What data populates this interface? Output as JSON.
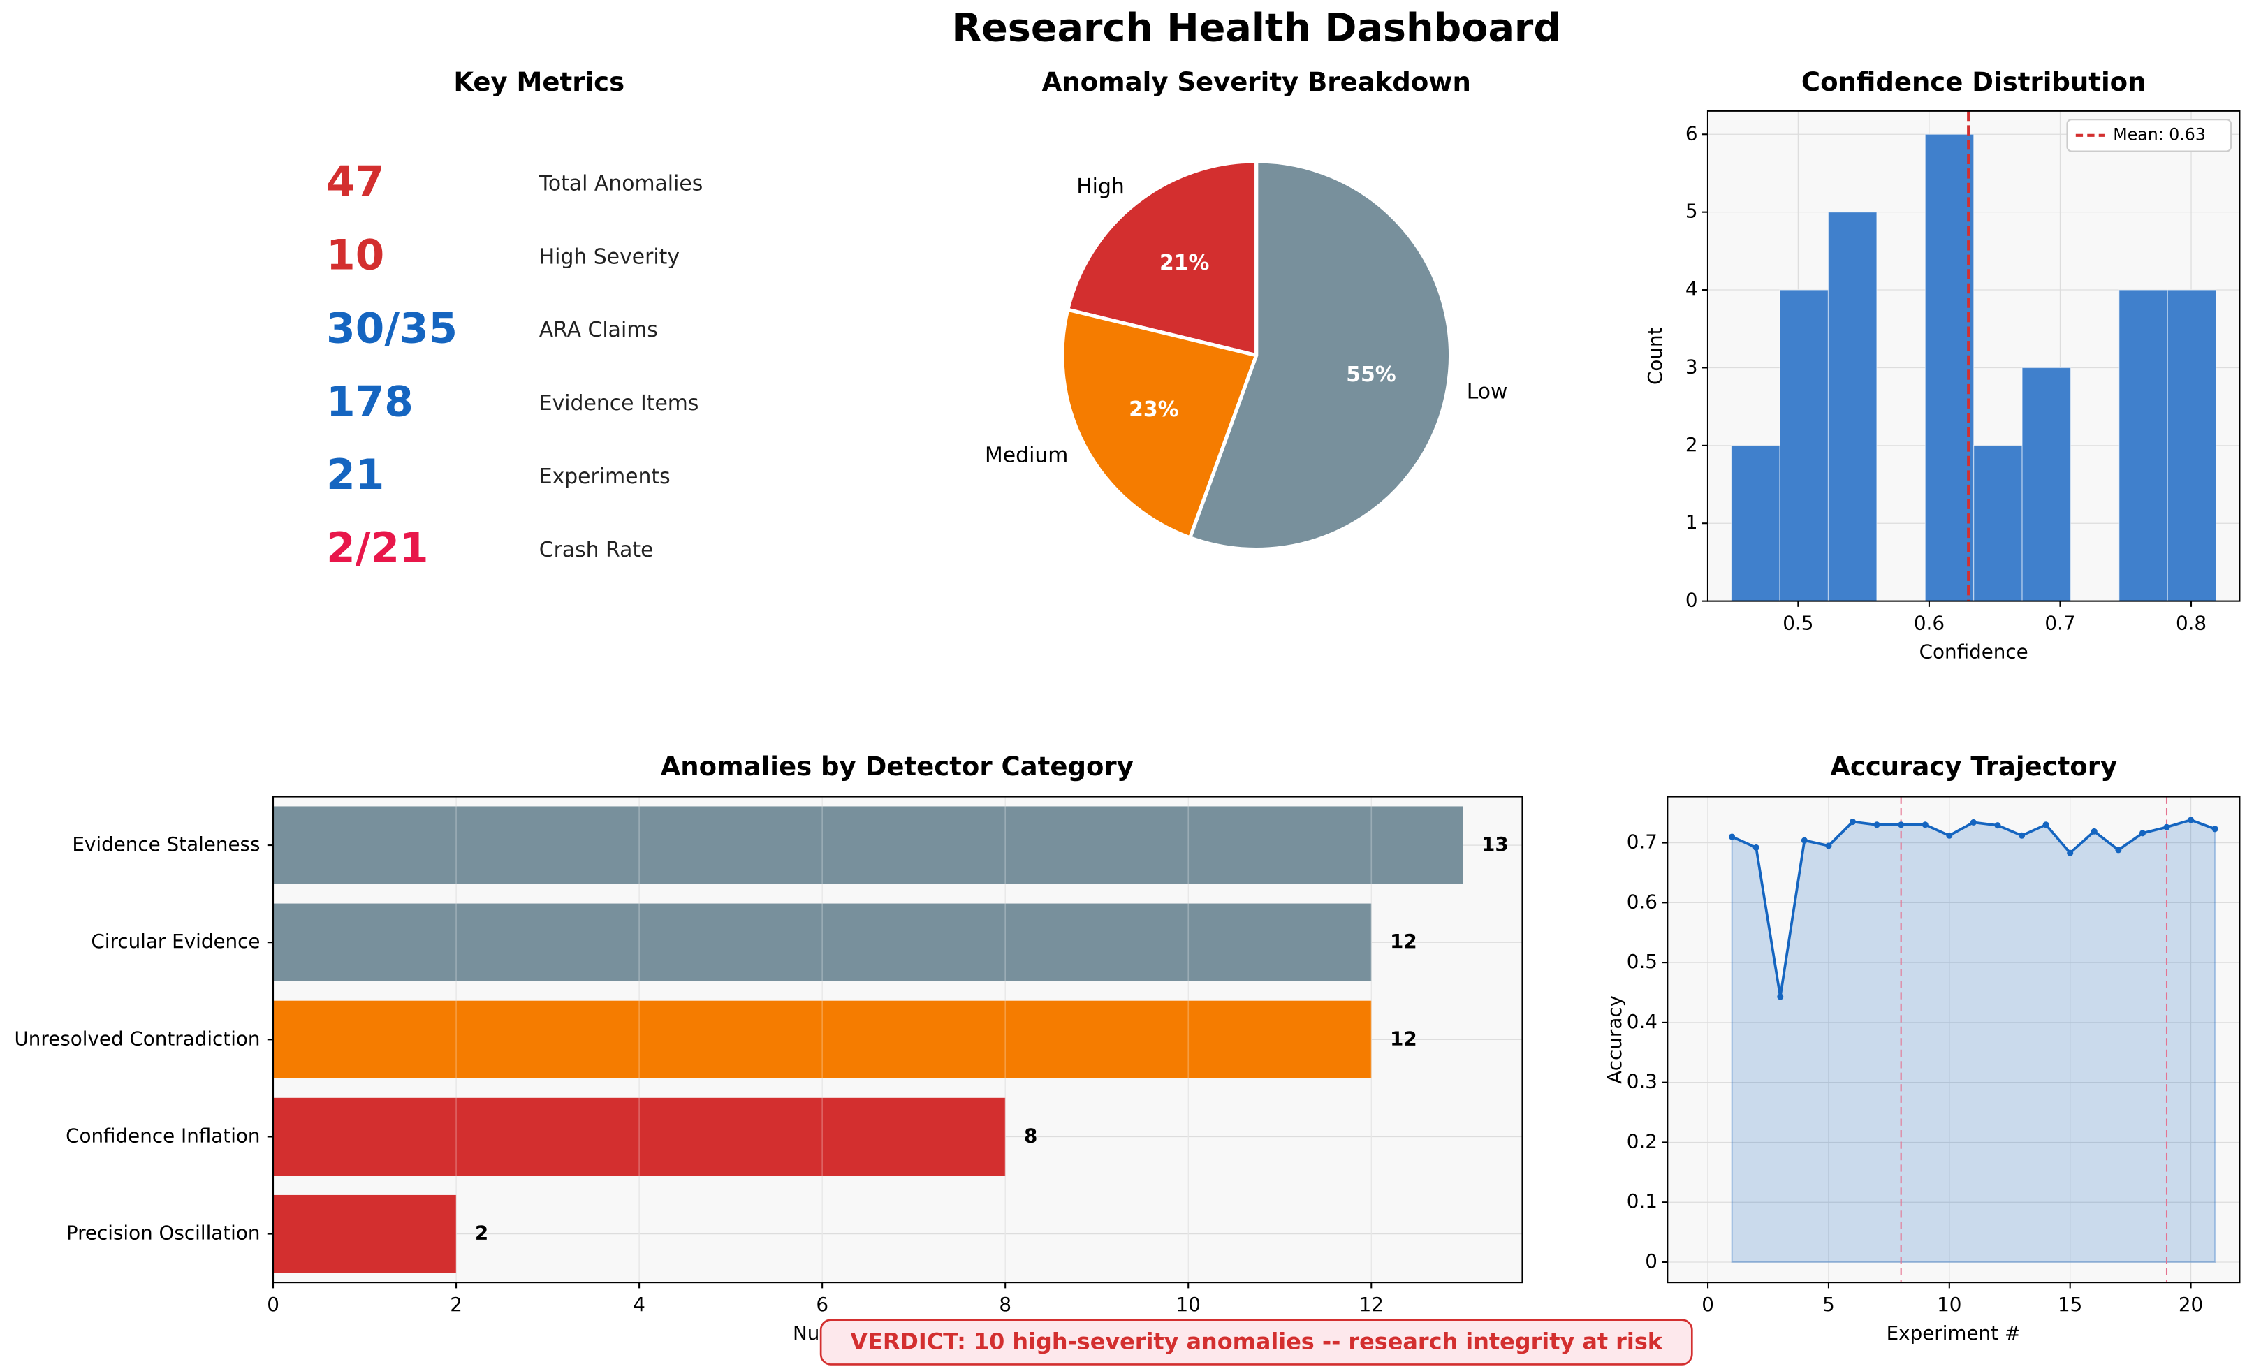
{
  "title": "Research Health Dashboard",
  "metrics": {
    "title": "Key Metrics",
    "items": [
      {
        "value": 47,
        "label": "Total Anomalies",
        "color": "#d32f2f"
      },
      {
        "value": 10,
        "label": "High Severity",
        "color": "#d32f2f"
      },
      {
        "value": "30/35",
        "label": "ARA Claims",
        "color": "#1565c0"
      },
      {
        "value": 178,
        "label": "Evidence Items",
        "color": "#1565c0"
      },
      {
        "value": 21,
        "label": "Experiments",
        "color": "#1565c0"
      },
      {
        "value": "2/21",
        "label": "Crash Rate",
        "color": "#e8174a"
      }
    ]
  },
  "chart_data": [
    {
      "type": "pie",
      "title": "Anomaly Severity Breakdown",
      "categories": [
        "High",
        "Medium",
        "Low"
      ],
      "values": [
        21,
        23,
        55
      ],
      "value_labels": [
        "21%",
        "23%",
        "55%"
      ],
      "colors": [
        "#d32f2f",
        "#f57c00",
        "#78909c"
      ]
    },
    {
      "type": "histogram",
      "title": "Confidence Distribution",
      "xlabel": "Confidence",
      "ylabel": "Count",
      "bins": [
        0.449,
        0.486,
        0.523,
        0.56,
        0.597,
        0.634,
        0.671,
        0.708,
        0.745,
        0.782,
        0.819
      ],
      "values": [
        2,
        4,
        5,
        0,
        6,
        2,
        3,
        0,
        4,
        4
      ],
      "color": "#4080cc",
      "xlim": [
        0.431,
        0.837
      ],
      "ylim": [
        0,
        6.3
      ],
      "xticks": [
        0.5,
        0.6,
        0.7,
        0.8
      ],
      "yticks": [
        0,
        1,
        2,
        3,
        4,
        5,
        6
      ],
      "grid": true,
      "mean_line": {
        "value": 0.63,
        "label": "Mean: 0.63",
        "color": "#d32f2f"
      },
      "legend": "upper right"
    },
    {
      "type": "hbar",
      "title": "Anomalies by Detector Category",
      "xlabel": "Number of Anomalies",
      "categories": [
        "Evidence Staleness",
        "Circular Evidence",
        "Unresolved Contradiction",
        "Confidence Inflation",
        "Precision Oscillation"
      ],
      "values": [
        13,
        12,
        12,
        8,
        2
      ],
      "colors": [
        "#78909c",
        "#78909c",
        "#f57c00",
        "#d32f2f",
        "#d32f2f"
      ],
      "xlim": [
        0,
        13.65
      ],
      "xticks": [
        0,
        2,
        4,
        6,
        8,
        10,
        12
      ],
      "grid": true
    },
    {
      "type": "line",
      "title": "Accuracy Trajectory",
      "xlabel": "Experiment #",
      "ylabel": "Accuracy",
      "x": [
        1,
        2,
        3,
        4,
        5,
        6,
        7,
        8,
        9,
        10,
        11,
        12,
        13,
        14,
        15,
        16,
        17,
        18,
        19,
        20,
        21
      ],
      "values": [
        0.71,
        0.692,
        0.443,
        0.704,
        0.695,
        0.735,
        0.73,
        0.73,
        0.73,
        0.712,
        0.734,
        0.729,
        0.712,
        0.73,
        0.683,
        0.719,
        0.688,
        0.716,
        0.726,
        0.738,
        0.723
      ],
      "color": "#1565c0",
      "xlim": [
        -1.67,
        22.02
      ],
      "ylim": [
        -0.034,
        0.777
      ],
      "xticks": [
        0,
        5,
        10,
        15,
        20
      ],
      "yticks": [
        0,
        0.1,
        0.2,
        0.3,
        0.4,
        0.5,
        0.6,
        0.7
      ],
      "yticklabels_format": null,
      "vlines": [
        8,
        19
      ],
      "vline_color": "#e57390",
      "grid": true
    }
  ],
  "verdict": "VERDICT: 10 high-severity anomalies -- research integrity at risk"
}
